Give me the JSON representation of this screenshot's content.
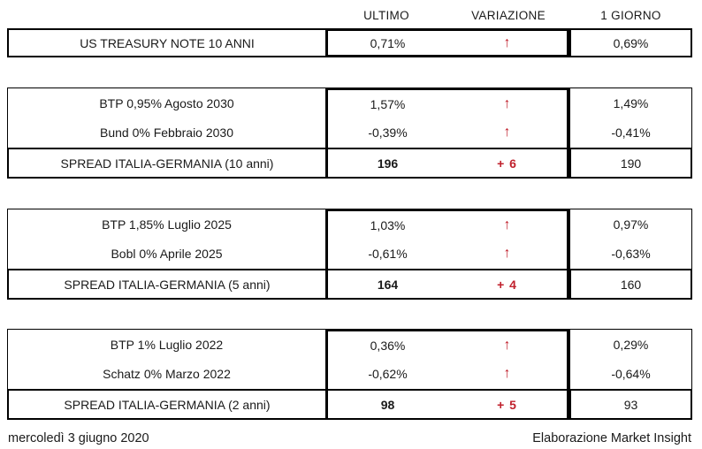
{
  "header": {
    "col_ultimo": "ULTIMO",
    "col_variazione": "VARIAZIONE",
    "col_giorno": "1 GIORNO"
  },
  "icons": {
    "up_arrow": "↑"
  },
  "colors": {
    "accent_red": "#C0202C",
    "border": "#000000",
    "text": "#1A1A1A",
    "background": "#FFFFFF"
  },
  "sections": [
    {
      "name": "us-treasury",
      "rows": [
        {
          "label": "US TREASURY NOTE 10 ANNI",
          "ultimo": "0,71%",
          "variazione": "↑",
          "giorno": "0,69%"
        }
      ]
    },
    {
      "name": "spread-10-anni",
      "rows": [
        {
          "label": "BTP 0,95% Agosto 2030",
          "ultimo": "1,57%",
          "variazione": "↑",
          "giorno": "1,49%"
        },
        {
          "label": "Bund 0% Febbraio 2030",
          "ultimo": "-0,39%",
          "variazione": "↑",
          "giorno": "-0,41%"
        },
        {
          "label": "SPREAD ITALIA-GERMANIA (10 anni)",
          "ultimo": "196",
          "variazione": "+ 6",
          "giorno": "190"
        }
      ]
    },
    {
      "name": "spread-5-anni",
      "rows": [
        {
          "label": "BTP 1,85% Luglio 2025",
          "ultimo": "1,03%",
          "variazione": "↑",
          "giorno": "0,97%"
        },
        {
          "label": "Bobl 0% Aprile 2025",
          "ultimo": "-0,61%",
          "variazione": "↑",
          "giorno": "-0,63%"
        },
        {
          "label": "SPREAD ITALIA-GERMANIA (5 anni)",
          "ultimo": "164",
          "variazione": "+ 4",
          "giorno": "160"
        }
      ]
    },
    {
      "name": "spread-2-anni",
      "rows": [
        {
          "label": "BTP 1% Luglio 2022",
          "ultimo": "0,36%",
          "variazione": "↑",
          "giorno": "0,29%"
        },
        {
          "label": "Schatz 0% Marzo 2022",
          "ultimo": "-0,62%",
          "variazione": "↑",
          "giorno": "-0,64%"
        },
        {
          "label": "SPREAD ITALIA-GERMANIA (2 anni)",
          "ultimo": "98",
          "variazione": "+ 5",
          "giorno": "93"
        }
      ]
    }
  ],
  "footer": {
    "date": "mercoledì 3 giugno 2020",
    "credit": "Elaborazione Market Insight"
  }
}
